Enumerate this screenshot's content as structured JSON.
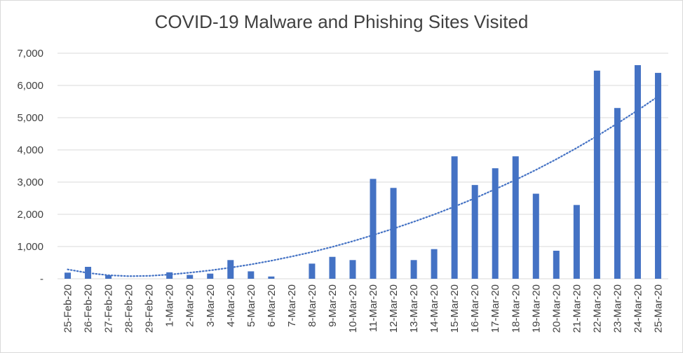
{
  "chart_data": {
    "type": "bar",
    "title": "COVID-19 Malware and Phishing Sites Visited",
    "xlabel": "",
    "ylabel": "",
    "ylim": [
      0,
      7000
    ],
    "yticks": [
      {
        "value": 0,
        "label": "-"
      },
      {
        "value": 1000,
        "label": "1,000"
      },
      {
        "value": 2000,
        "label": "2,000"
      },
      {
        "value": 3000,
        "label": "3,000"
      },
      {
        "value": 4000,
        "label": "4,000"
      },
      {
        "value": 5000,
        "label": "5,000"
      },
      {
        "value": 6000,
        "label": "6,000"
      },
      {
        "value": 7000,
        "label": "7,000"
      }
    ],
    "grid": true,
    "legend": "none",
    "categories": [
      "25-Feb-20",
      "26-Feb-20",
      "27-Feb-20",
      "28-Feb-20",
      "29-Feb-20",
      "1-Mar-20",
      "2-Mar-20",
      "3-Mar-20",
      "4-Mar-20",
      "5-Mar-20",
      "6-Mar-20",
      "7-Mar-20",
      "8-Mar-20",
      "9-Mar-20",
      "10-Mar-20",
      "11-Mar-20",
      "12-Mar-20",
      "13-Mar-20",
      "14-Mar-20",
      "15-Mar-20",
      "16-Mar-20",
      "17-Mar-20",
      "18-Mar-20",
      "19-Mar-20",
      "20-Mar-20",
      "21-Mar-20",
      "22-Mar-20",
      "23-Mar-20",
      "24-Mar-20",
      "25-Mar-20"
    ],
    "values": [
      190,
      370,
      110,
      0,
      0,
      200,
      120,
      160,
      580,
      230,
      70,
      0,
      470,
      680,
      580,
      3100,
      2820,
      580,
      920,
      3800,
      2910,
      3430,
      3800,
      2640,
      870,
      2290,
      6460,
      5300,
      6630,
      6390
    ],
    "trendline": {
      "type": "polynomial",
      "style": "dotted",
      "values": [
        290,
        180,
        110,
        80,
        90,
        130,
        190,
        260,
        345,
        445,
        560,
        690,
        830,
        990,
        1165,
        1355,
        1555,
        1770,
        1995,
        2240,
        2500,
        2780,
        3070,
        3380,
        3710,
        4060,
        4430,
        4820,
        5230,
        5660
      ]
    },
    "colors": {
      "bar": "#4472C4",
      "trendline": "#4472C4",
      "grid": "#d9d9d9",
      "text": "#404040"
    }
  }
}
